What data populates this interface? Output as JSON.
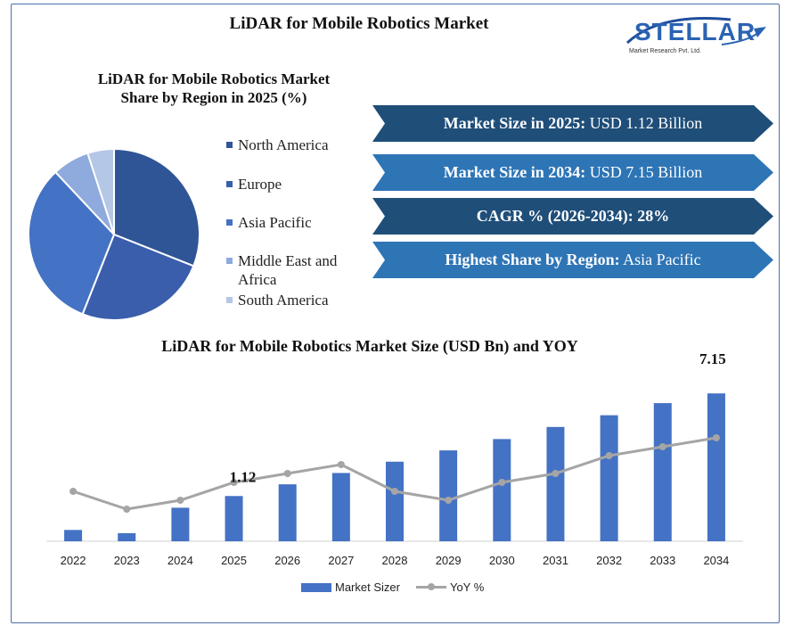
{
  "main_title": "LiDAR for Mobile Robotics Market",
  "logo": {
    "name": "STELLAR",
    "tagline": "Market Research Pvt. Ltd."
  },
  "pie_title": [
    "LiDAR for Mobile Robotics Market",
    "Share by Region in 2025 (%)"
  ],
  "kpis": [
    {
      "label": "Market Size in 2025:",
      "value": " USD 1.12 Billion",
      "color": "#1f4e79"
    },
    {
      "label": "Market Size in 2034:",
      "value": " USD 7.15  Billion",
      "color": "#2e75b6"
    },
    {
      "label": "CAGR % (2026-2034): 28%",
      "value": "",
      "color": "#1f4e79"
    },
    {
      "label": "Highest Share by Region:",
      "value": " Asia Pacific",
      "color": "#2e75b6"
    }
  ],
  "bar_title": "LiDAR for Mobile Robotics Market Size (USD Bn) and YOY",
  "legend": {
    "bar": "Market Sizer",
    "line": "YoY %"
  },
  "chart_data": [
    {
      "type": "pie",
      "title": "LiDAR for Mobile Robotics Market Share by Region in 2025 (%)",
      "categories": [
        "North America",
        "Europe",
        "Asia Pacific",
        "Middle East and Africa",
        "South America"
      ],
      "values": [
        31,
        25,
        32,
        7,
        5
      ],
      "colors": [
        "#2f5597",
        "#3a5eab",
        "#4472c4",
        "#8faadc",
        "#b4c7e7"
      ],
      "legend_position": "right"
    },
    {
      "type": "bar",
      "title": "LiDAR for Mobile Robotics Market Size (USD Bn) and YOY",
      "categories": [
        "2022",
        "2023",
        "2024",
        "2025",
        "2026",
        "2027",
        "2028",
        "2029",
        "2030",
        "2031",
        "2032",
        "2033",
        "2034"
      ],
      "series": [
        {
          "name": "Market Sizer",
          "type": "bar",
          "color": "#4472c4",
          "values": [
            0.28,
            0.2,
            0.83,
            1.12,
            1.41,
            1.69,
            1.97,
            2.25,
            2.53,
            2.83,
            3.12,
            3.42,
            7.15
          ],
          "display_values": [
            0.28,
            0.2,
            0.83,
            1.12,
            1.41,
            1.69,
            1.97,
            2.25,
            2.53,
            2.83,
            3.12,
            3.42,
            3.66
          ]
        },
        {
          "name": "YoY %",
          "type": "line",
          "color": "#a5a5a5",
          "values": [
            10,
            8,
            9,
            11,
            12,
            13,
            10,
            9,
            11,
            12,
            14,
            15,
            16
          ]
        }
      ],
      "data_labels": [
        {
          "category": "2025",
          "text": "1.12"
        },
        {
          "category": "2034",
          "text": "7.15"
        }
      ],
      "grid": false,
      "legend_position": "bottom"
    }
  ]
}
